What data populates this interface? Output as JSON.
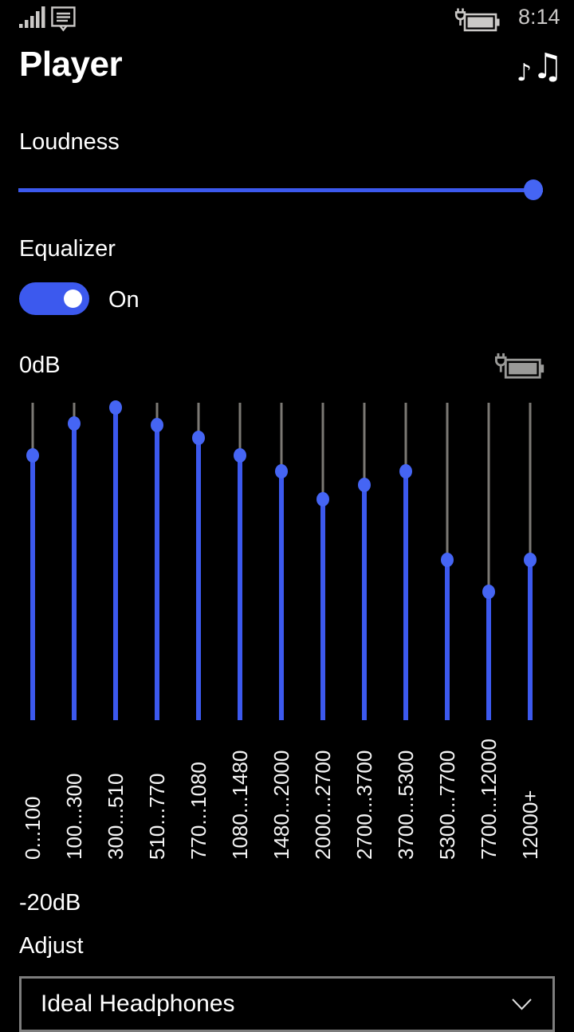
{
  "colors": {
    "accent": "#3C59EE",
    "accent_thumb": "#4565F4",
    "track_gray": "#7b7974",
    "status_icon_gray": "#cbc9c7",
    "eq_icon_gray": "#9a9a98",
    "dropdown_border": "#7d7d7d",
    "background": "#000000",
    "text": "#ffffff"
  },
  "status_bar": {
    "time": "8:14",
    "icons": [
      "signal-strength-icon",
      "message-notification-icon",
      "battery-charging-icon"
    ]
  },
  "header": {
    "title": "Player",
    "action_icon": "music-notes-icon",
    "music_glyph_small": "♪",
    "music_glyph_beamed": "♫"
  },
  "loudness": {
    "label": "Loudness",
    "value_percent": 100
  },
  "equalizer": {
    "label": "Equalizer",
    "state_label": "On",
    "enabled": true,
    "scale_top_label": "0dB",
    "scale_bottom_label": "-20dB",
    "max_db": 0,
    "min_db": -20,
    "power_icon": "battery-charging-icon",
    "bands": [
      {
        "range": "0...100",
        "gain_db": -3.3
      },
      {
        "range": "100...300",
        "gain_db": -1.3
      },
      {
        "range": "300...510",
        "gain_db": -0.3
      },
      {
        "range": "510...770",
        "gain_db": -1.4
      },
      {
        "range": "770...1080",
        "gain_db": -2.2
      },
      {
        "range": "1080...1480",
        "gain_db": -3.3
      },
      {
        "range": "1480...2000",
        "gain_db": -4.3
      },
      {
        "range": "2000...2700",
        "gain_db": -6.1
      },
      {
        "range": "2700...3700",
        "gain_db": -5.2
      },
      {
        "range": "3700...5300",
        "gain_db": -4.3
      },
      {
        "range": "5300...7700",
        "gain_db": -9.9
      },
      {
        "range": "7700...12000",
        "gain_db": -11.9
      },
      {
        "range": "12000+",
        "gain_db": -9.9
      }
    ]
  },
  "adjust": {
    "label": "Adjust",
    "selected_option": "Ideal Headphones",
    "dropdown_icon": "chevron-down-icon"
  }
}
